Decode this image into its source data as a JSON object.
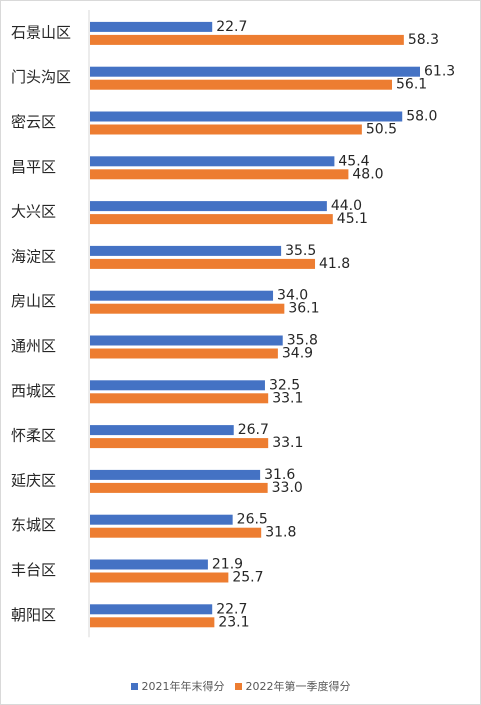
{
  "chart_data": {
    "type": "bar",
    "orientation": "horizontal",
    "categories": [
      "石景山区",
      "门头沟区",
      "密云区",
      "昌平区",
      "大兴区",
      "海淀区",
      "房山区",
      "通州区",
      "西城区",
      "怀柔区",
      "延庆区",
      "东城区",
      "丰台区",
      "朝阳区"
    ],
    "series": [
      {
        "name": "2021年年末得分",
        "color": "#4472c4",
        "values": [
          22.7,
          61.3,
          58.0,
          45.4,
          44.0,
          35.5,
          34.0,
          35.8,
          32.5,
          26.7,
          31.6,
          26.5,
          21.9,
          22.7
        ],
        "labels": [
          "22.7",
          "61.3",
          "58.0",
          "45.4",
          "44.0",
          "35.5",
          "34.0",
          "35.8",
          "32.5",
          "26.7",
          "31.6",
          "26.5",
          "21.9",
          "22.7"
        ]
      },
      {
        "name": "2022年第一季度得分",
        "color": "#ed7d31",
        "values": [
          58.3,
          56.1,
          50.5,
          48.0,
          45.1,
          41.8,
          36.1,
          34.9,
          33.1,
          33.1,
          33.0,
          31.8,
          25.7,
          23.1
        ],
        "labels": [
          "58.3",
          "56.1",
          "50.5",
          "48.0",
          "45.1",
          "41.8",
          "36.1",
          "34.9",
          "33.1",
          "33.1",
          "33.0",
          "31.8",
          "25.7",
          "23.1"
        ]
      }
    ],
    "xlim": [
      0,
      70
    ],
    "grid": false,
    "axis_color": "#d9d9d9",
    "legend_position": "bottom"
  }
}
